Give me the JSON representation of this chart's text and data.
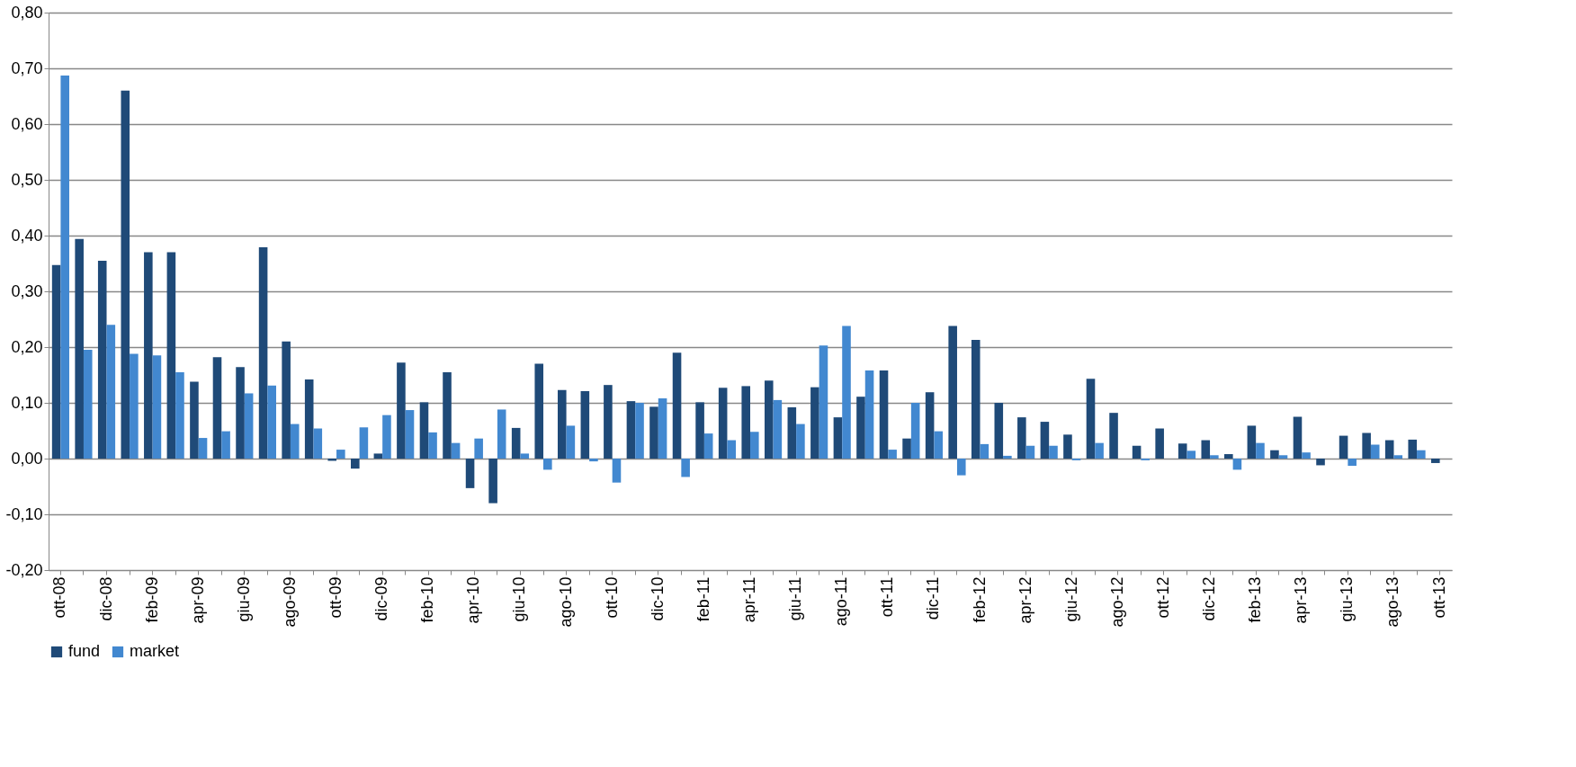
{
  "chart_data": {
    "type": "bar",
    "categories": [
      "ott-08",
      null,
      "dic-08",
      null,
      "feb-09",
      null,
      "apr-09",
      null,
      "giu-09",
      null,
      "ago-09",
      null,
      "ott-09",
      null,
      "dic-09",
      null,
      "feb-10",
      null,
      "apr-10",
      null,
      "giu-10",
      null,
      "ago-10",
      null,
      "ott-10",
      null,
      "dic-10",
      null,
      "feb-11",
      null,
      "apr-11",
      null,
      "giu-11",
      null,
      "ago-11",
      null,
      "ott-11",
      null,
      "dic-11",
      null,
      "feb-12",
      null,
      "apr-12",
      null,
      "giu-12",
      null,
      "ago-12",
      null,
      "ott-12",
      null,
      "dic-12",
      null,
      "feb-13",
      null,
      "apr-13",
      null,
      "giu-13",
      null,
      "ago-13",
      null,
      "ott-13"
    ],
    "series": [
      {
        "name": "fund",
        "color": "#1f4a78",
        "values": [
          0.347,
          0.394,
          0.355,
          0.66,
          0.37,
          0.37,
          0.138,
          0.182,
          0.164,
          0.379,
          0.21,
          0.142,
          -0.004,
          -0.018,
          0.009,
          0.172,
          0.101,
          0.155,
          -0.053,
          -0.08,
          0.055,
          0.17,
          0.123,
          0.121,
          0.132,
          0.103,
          0.093,
          0.19,
          0.101,
          0.127,
          0.13,
          0.14,
          0.092,
          0.128,
          0.074,
          0.111,
          0.158,
          0.036,
          0.119,
          0.238,
          0.213,
          0.1,
          0.074,
          0.066,
          0.043,
          0.143,
          0.082,
          0.023,
          0.054,
          0.027,
          0.033,
          0.008,
          0.059,
          0.015,
          0.075,
          -0.012,
          0.041,
          0.046,
          0.033,
          0.034,
          -0.008
        ]
      },
      {
        "name": "market",
        "color": "#4288d0",
        "values": [
          0.687,
          0.195,
          0.24,
          0.188,
          0.185,
          0.155,
          0.037,
          0.049,
          0.117,
          0.131,
          0.062,
          0.054,
          0.016,
          0.056,
          0.078,
          0.087,
          0.047,
          0.028,
          0.036,
          0.088,
          0.009,
          -0.02,
          0.059,
          -0.005,
          -0.043,
          0.1,
          0.108,
          -0.033,
          0.045,
          0.033,
          0.048,
          0.105,
          0.062,
          0.203,
          0.238,
          0.158,
          0.016,
          0.1,
          0.049,
          -0.03,
          0.026,
          0.005,
          0.023,
          0.023,
          -0.003,
          0.028,
          null,
          -0.003,
          null,
          0.014,
          0.006,
          -0.02,
          0.028,
          0.006,
          0.011,
          null,
          -0.013,
          0.025,
          0.006,
          0.015,
          null
        ]
      }
    ],
    "ylim": [
      -0.2,
      0.8
    ],
    "yticks": [
      {
        "value": -0.2,
        "label": "-0,20"
      },
      {
        "value": -0.1,
        "label": "-0,10"
      },
      {
        "value": 0,
        "label": "0,00"
      },
      {
        "value": 0.1,
        "label": "0,10"
      },
      {
        "value": 0.2,
        "label": "0,20"
      },
      {
        "value": 0.3,
        "label": "0,30"
      },
      {
        "value": 0.4,
        "label": "0,40"
      },
      {
        "value": 0.5,
        "label": "0,50"
      },
      {
        "value": 0.6,
        "label": "0,60"
      },
      {
        "value": 0.7,
        "label": "0,70"
      },
      {
        "value": 0.8,
        "label": "0,80"
      }
    ],
    "grid": "y",
    "legend": "bottom"
  }
}
